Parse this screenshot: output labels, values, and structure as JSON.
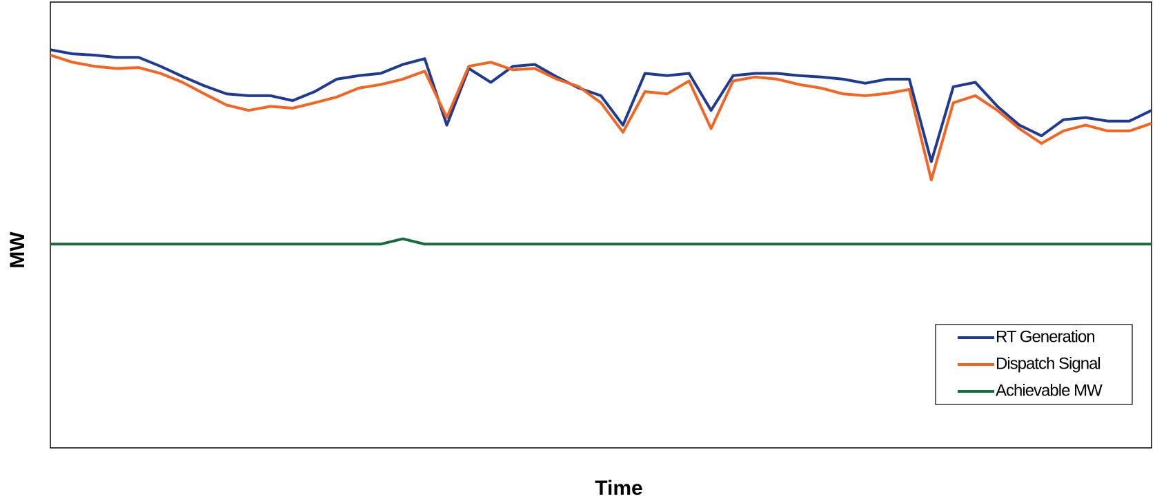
{
  "chart_data": {
    "type": "line",
    "x_label": "Time",
    "y_label": "MW",
    "ylim": [
      0,
      100
    ],
    "legend": "lower right",
    "series": [
      {
        "name": "RT Generation",
        "color": "#1f3a93",
        "values": [
          89.3,
          88.4,
          88.1,
          87.6,
          87.6,
          85.6,
          83.3,
          81.2,
          79.4,
          79.0,
          79.0,
          77.9,
          79.9,
          82.7,
          83.5,
          84.0,
          86.0,
          87.3,
          72.4,
          85.1,
          82.0,
          85.6,
          86.0,
          83.2,
          80.7,
          79.0,
          72.4,
          84.0,
          83.5,
          84.0,
          75.7,
          83.5,
          84.0,
          84.0,
          83.5,
          83.2,
          82.7,
          81.8,
          82.7,
          82.7,
          64.2,
          81.0,
          82.0,
          76.6,
          72.4,
          70.0,
          73.6,
          74.1,
          73.3,
          73.3,
          75.7
        ]
      },
      {
        "name": "Dispatch Signal",
        "color": "#f26522",
        "values": [
          88.1,
          86.5,
          85.6,
          85.1,
          85.3,
          84.0,
          82.0,
          79.4,
          76.9,
          75.7,
          76.6,
          76.2,
          77.4,
          78.7,
          80.7,
          81.5,
          82.7,
          84.5,
          74.1,
          85.6,
          86.5,
          84.8,
          85.1,
          82.7,
          81.0,
          77.4,
          70.8,
          79.9,
          79.4,
          82.3,
          71.6,
          82.3,
          83.2,
          82.7,
          81.5,
          80.7,
          79.4,
          79.0,
          79.5,
          80.4,
          60.1,
          77.4,
          79.0,
          75.7,
          71.6,
          68.3,
          71.1,
          72.4,
          71.1,
          71.1,
          72.8
        ]
      },
      {
        "name": "Achievable MW",
        "color": "#1a6b3c",
        "values": [
          45.7,
          45.7,
          45.7,
          45.7,
          45.7,
          45.7,
          45.7,
          45.7,
          45.7,
          45.7,
          45.7,
          45.7,
          45.7,
          45.7,
          45.7,
          45.7,
          46.9,
          45.7,
          45.7,
          45.7,
          45.7,
          45.7,
          45.7,
          45.7,
          45.7,
          45.7,
          45.7,
          45.7,
          45.7,
          45.7,
          45.7,
          45.7,
          45.7,
          45.7,
          45.7,
          45.7,
          45.7,
          45.7,
          45.7,
          45.7,
          45.7,
          45.7,
          45.7,
          45.7,
          45.7,
          45.7,
          45.7,
          45.7,
          45.7,
          45.7,
          45.7
        ]
      }
    ]
  }
}
